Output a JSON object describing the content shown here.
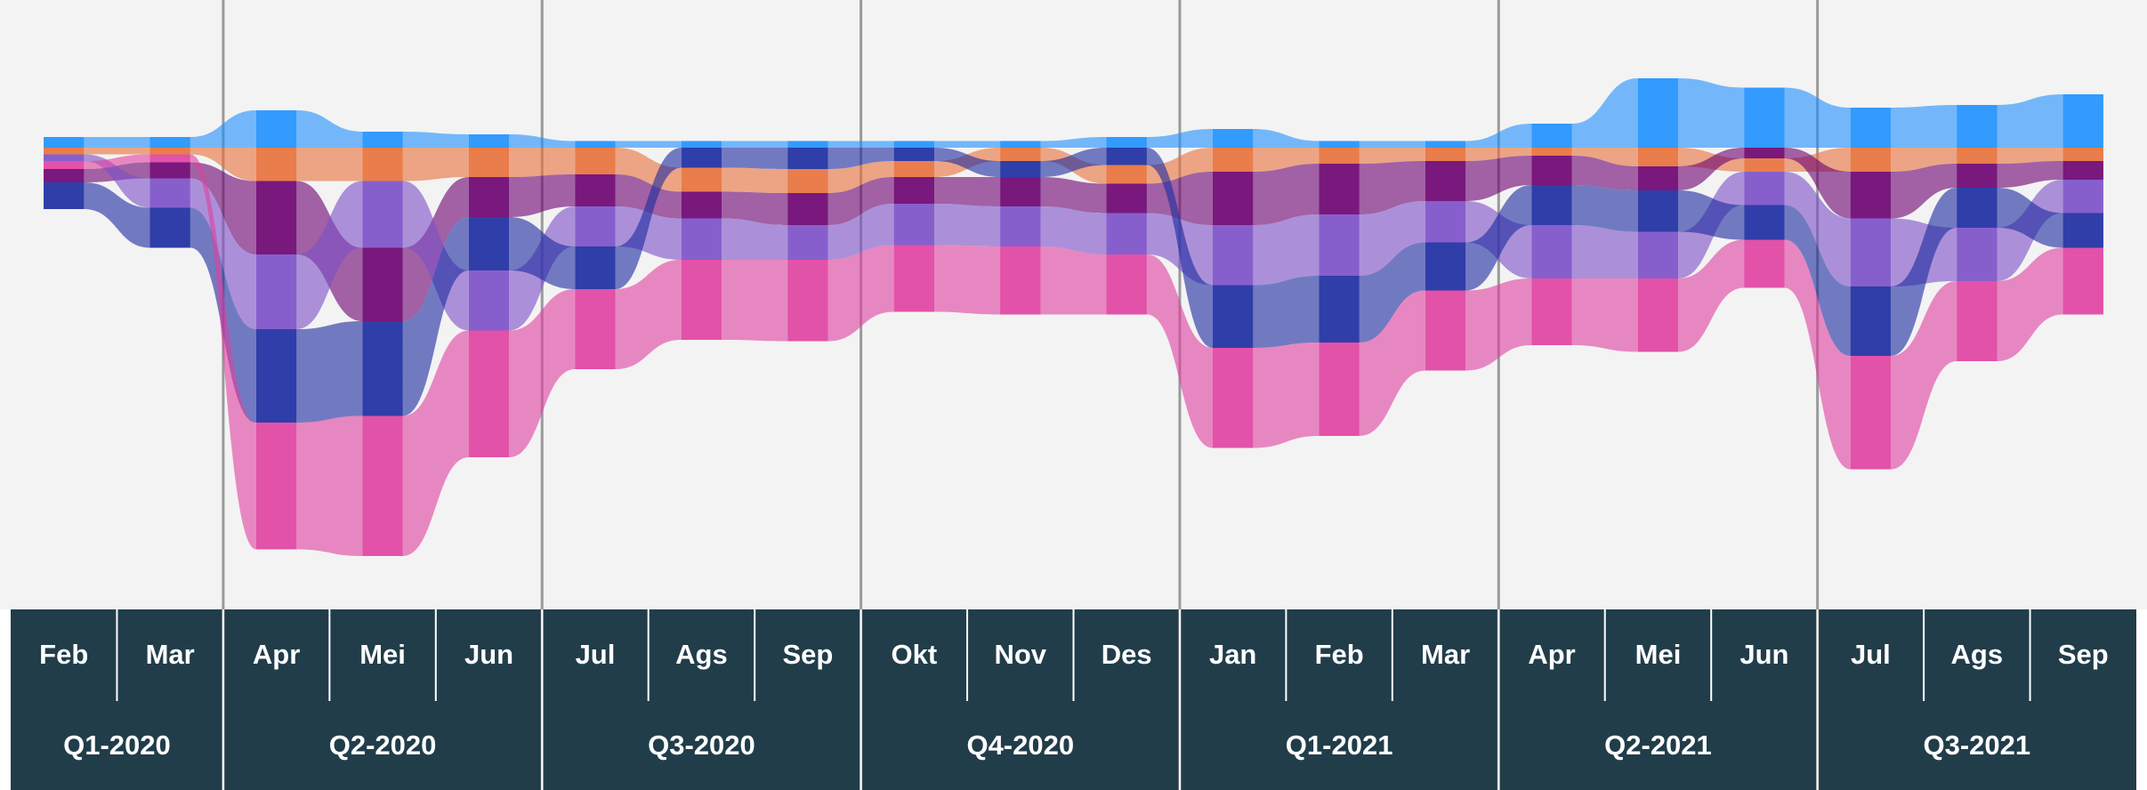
{
  "chart_data": {
    "type": "ribbon",
    "quarters": [
      {
        "label": "Q1-2020",
        "months": [
          "Feb",
          "Mar"
        ]
      },
      {
        "label": "Q2-2020",
        "months": [
          "Apr",
          "Mei",
          "Jun"
        ]
      },
      {
        "label": "Q3-2020",
        "months": [
          "Jul",
          "Ags",
          "Sep"
        ]
      },
      {
        "label": "Q4-2020",
        "months": [
          "Okt",
          "Nov",
          "Des"
        ]
      },
      {
        "label": "Q1-2021",
        "months": [
          "Jan",
          "Feb",
          "Mar"
        ]
      },
      {
        "label": "Q2-2021",
        "months": [
          "Apr",
          "Mei",
          "Jun"
        ]
      },
      {
        "label": "Q3-2021",
        "months": [
          "Jul",
          "Ags",
          "Sep"
        ]
      }
    ],
    "series": [
      {
        "color": "#1e90ff",
        "values": [
          8,
          8,
          28,
          12,
          10,
          5,
          5,
          5,
          5,
          5,
          8,
          14,
          5,
          5,
          18,
          52,
          45,
          30,
          32,
          40
        ]
      },
      {
        "color": "#e8703a",
        "values": [
          5,
          5,
          25,
          25,
          22,
          20,
          18,
          18,
          12,
          10,
          14,
          18,
          12,
          10,
          6,
          14,
          10,
          18,
          12,
          10
        ]
      },
      {
        "color": "#6b0070",
        "values": [
          10,
          12,
          55,
          55,
          30,
          24,
          20,
          24,
          20,
          22,
          22,
          40,
          38,
          30,
          22,
          18,
          8,
          35,
          18,
          14
        ]
      },
      {
        "color": "#7b4fc8",
        "values": [
          5,
          22,
          56,
          50,
          45,
          30,
          31,
          26,
          31,
          30,
          31,
          45,
          46,
          31,
          40,
          35,
          25,
          51,
          40,
          25
        ]
      },
      {
        "color": "#1a2aa0",
        "values": [
          20,
          30,
          70,
          71,
          40,
          32,
          15,
          16,
          10,
          12,
          13,
          47,
          50,
          36,
          30,
          31,
          26,
          52,
          30,
          26
        ]
      },
      {
        "color": "#e040a0",
        "values": [
          6,
          6,
          95,
          105,
          95,
          60,
          60,
          61,
          50,
          51,
          45,
          75,
          70,
          60,
          50,
          55,
          36,
          85,
          60,
          50
        ]
      }
    ]
  }
}
